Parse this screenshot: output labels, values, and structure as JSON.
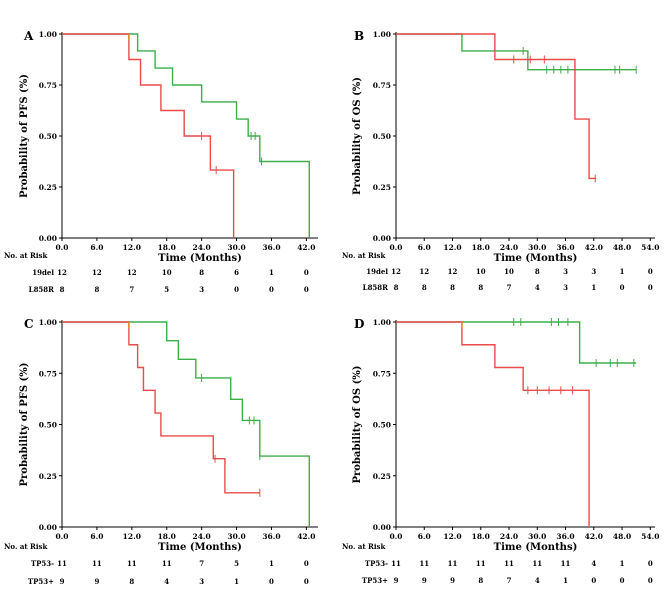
{
  "figure": {
    "colors": {
      "green": "#3cae4a",
      "red": "#ec4a4a",
      "orange": "#e08a1e"
    }
  },
  "chart_data": [
    {
      "panel": "A",
      "type": "line",
      "subtype": "kaplan-meier",
      "ylabel": "Probability of PFS (%)",
      "xlabel": "Time  (Months)",
      "xlim": [
        0,
        44
      ],
      "ylim": [
        0,
        1
      ],
      "xticks": [
        "0.0",
        "6.0",
        "12.0",
        "18.0",
        "24.0",
        "30.0",
        "36.0",
        "42.0"
      ],
      "xtick_values": [
        0,
        6,
        12,
        18,
        24,
        30,
        36,
        42
      ],
      "yticks": [
        "0.00",
        "0.25",
        "0.50",
        "0.75",
        "1.00"
      ],
      "ytick_values": [
        0,
        0.25,
        0.5,
        0.75,
        1
      ],
      "series": [
        {
          "name": "19del",
          "color": "green",
          "steps": [
            [
              0,
              1
            ],
            [
              13,
              0.917
            ],
            [
              16,
              0.833
            ],
            [
              19,
              0.75
            ],
            [
              24,
              0.667
            ],
            [
              30,
              0.583
            ],
            [
              32,
              0.5
            ],
            [
              34,
              0.375
            ],
            [
              42.5,
              0
            ]
          ],
          "censors": [
            [
              32.5,
              0.5
            ],
            [
              33.2,
              0.5
            ],
            [
              34.3,
              0.375
            ]
          ]
        },
        {
          "name": "L858R",
          "color": "red",
          "steps": [
            [
              0,
              1
            ],
            [
              11.5,
              0.875
            ],
            [
              13.5,
              0.75
            ],
            [
              17,
              0.625
            ],
            [
              21,
              0.5
            ],
            [
              25.5,
              0.333
            ],
            [
              29.5,
              0
            ]
          ],
          "censors": [
            [
              24,
              0.5
            ],
            [
              26.5,
              0.333
            ]
          ]
        }
      ],
      "risk_table": {
        "title": "No. at Risk",
        "rows": [
          {
            "label": "19del",
            "values": [
              "12",
              "12",
              "12",
              "10",
              "8",
              "6",
              "1",
              "0"
            ]
          },
          {
            "label": "L858R",
            "values": [
              "8",
              "8",
              "7",
              "5",
              "3",
              "0",
              "0",
              "0"
            ]
          }
        ]
      }
    },
    {
      "panel": "B",
      "type": "line",
      "subtype": "kaplan-meier",
      "ylabel": "Probability of OS (%)",
      "xlabel": "Time  (Months)",
      "xlim": [
        0,
        55
      ],
      "ylim": [
        0,
        1
      ],
      "xticks": [
        "0.0",
        "6.0",
        "12.0",
        "18.0",
        "24.0",
        "30.0",
        "36.0",
        "42.0",
        "48.0",
        "54.0"
      ],
      "xtick_values": [
        0,
        6,
        12,
        18,
        24,
        30,
        36,
        42,
        48,
        54
      ],
      "yticks": [
        "0.00",
        "0.25",
        "0.50",
        "0.75",
        "1.00"
      ],
      "ytick_values": [
        0,
        0.25,
        0.5,
        0.75,
        1
      ],
      "series": [
        {
          "name": "19del",
          "color": "green",
          "steps": [
            [
              0,
              1
            ],
            [
              14,
              0.917
            ],
            [
              28,
              0.825
            ],
            [
              51,
              0.825
            ]
          ],
          "censors": [
            [
              27,
              0.917
            ],
            [
              32,
              0.825
            ],
            [
              33.5,
              0.825
            ],
            [
              35,
              0.825
            ],
            [
              36.5,
              0.825
            ],
            [
              46.5,
              0.825
            ],
            [
              47.5,
              0.825
            ],
            [
              51,
              0.825
            ]
          ]
        },
        {
          "name": "L858R",
          "color": "red",
          "steps": [
            [
              0,
              1
            ],
            [
              21,
              0.875
            ],
            [
              38,
              0.583
            ],
            [
              41,
              0.292
            ],
            [
              42.5,
              0.292
            ]
          ],
          "censors": [
            [
              25,
              0.875
            ],
            [
              28.5,
              0.875
            ],
            [
              31.5,
              0.875
            ],
            [
              42.3,
              0.292
            ]
          ]
        }
      ],
      "risk_table": {
        "title": "No. at Risk",
        "rows": [
          {
            "label": "19del",
            "values": [
              "12",
              "12",
              "12",
              "10",
              "10",
              "8",
              "3",
              "3",
              "1",
              "0"
            ]
          },
          {
            "label": "L858R",
            "values": [
              "8",
              "8",
              "8",
              "8",
              "7",
              "4",
              "3",
              "1",
              "0",
              "0"
            ]
          }
        ]
      }
    },
    {
      "panel": "C",
      "type": "line",
      "subtype": "kaplan-meier",
      "ylabel": "Probability of PFS (%)",
      "xlabel": "Time  (Months)",
      "xlim": [
        0,
        44
      ],
      "ylim": [
        0,
        1
      ],
      "xticks": [
        "0.0",
        "6.0",
        "12.0",
        "18.0",
        "24.0",
        "30.0",
        "36.0",
        "42.0"
      ],
      "xtick_values": [
        0,
        6,
        12,
        18,
        24,
        30,
        36,
        42
      ],
      "yticks": [
        "0.00",
        "0.25",
        "0.50",
        "0.75",
        "1.00"
      ],
      "ytick_values": [
        0,
        0.25,
        0.5,
        0.75,
        1
      ],
      "series": [
        {
          "name": "TP53-",
          "color": "green",
          "steps": [
            [
              0,
              1
            ],
            [
              18,
              0.909
            ],
            [
              20,
              0.818
            ],
            [
              23,
              0.727
            ],
            [
              29,
              0.623
            ],
            [
              31,
              0.52
            ],
            [
              34,
              0.346
            ],
            [
              42.5,
              0
            ]
          ],
          "censors": [
            [
              24,
              0.727
            ],
            [
              32.2,
              0.52
            ],
            [
              33,
              0.52
            ],
            [
              34,
              0.346
            ]
          ]
        },
        {
          "name": "TP53+",
          "color": "red",
          "steps": [
            [
              0,
              1
            ],
            [
              11.5,
              0.889
            ],
            [
              13,
              0.778
            ],
            [
              14,
              0.667
            ],
            [
              16,
              0.556
            ],
            [
              17,
              0.444
            ],
            [
              26,
              0.333
            ],
            [
              28,
              0.167
            ],
            [
              34,
              0.167
            ]
          ],
          "censors": [
            [
              26.3,
              0.333
            ],
            [
              34,
              0.167
            ]
          ]
        }
      ],
      "risk_table": {
        "title": "No. at Risk",
        "rows": [
          {
            "label": "TP53-",
            "values": [
              "11",
              "11",
              "11",
              "11",
              "7",
              "5",
              "1",
              "0"
            ]
          },
          {
            "label": "TP53+",
            "values": [
              "9",
              "9",
              "8",
              "4",
              "3",
              "1",
              "0",
              "0"
            ]
          }
        ]
      }
    },
    {
      "panel": "D",
      "type": "line",
      "subtype": "kaplan-meier",
      "ylabel": "Probability of OS (%)",
      "xlabel": "Time  (Months)",
      "xlim": [
        0,
        55
      ],
      "ylim": [
        0,
        1
      ],
      "xticks": [
        "0.0",
        "6.0",
        "12.0",
        "18.0",
        "24.0",
        "30.0",
        "36.0",
        "42.0",
        "48.0",
        "54.0"
      ],
      "xtick_values": [
        0,
        6,
        12,
        18,
        24,
        30,
        36,
        42,
        48,
        54
      ],
      "yticks": [
        "0.00",
        "0.25",
        "0.50",
        "0.75",
        "1.00"
      ],
      "ytick_values": [
        0,
        0.25,
        0.5,
        0.75,
        1
      ],
      "series": [
        {
          "name": "TP53-",
          "color": "green",
          "steps": [
            [
              0,
              1
            ],
            [
              39,
              0.8
            ],
            [
              51,
              0.8
            ]
          ],
          "censors": [
            [
              25,
              1
            ],
            [
              26.5,
              1
            ],
            [
              33,
              1
            ],
            [
              34.5,
              1
            ],
            [
              36.5,
              1
            ],
            [
              42.5,
              0.8
            ],
            [
              45.5,
              0.8
            ],
            [
              47,
              0.8
            ],
            [
              50.5,
              0.8
            ]
          ]
        },
        {
          "name": "TP53+",
          "color": "red",
          "steps": [
            [
              0,
              1
            ],
            [
              14,
              0.889
            ],
            [
              21,
              0.778
            ],
            [
              27,
              0.667
            ],
            [
              41,
              0
            ]
          ],
          "censors": [
            [
              28,
              0.667
            ],
            [
              30,
              0.667
            ],
            [
              32.5,
              0.667
            ],
            [
              35,
              0.667
            ],
            [
              37.5,
              0.667
            ]
          ]
        }
      ],
      "risk_table": {
        "title": "No. at Risk",
        "rows": [
          {
            "label": "TP53-",
            "values": [
              "11",
              "11",
              "11",
              "11",
              "11",
              "11",
              "11",
              "4",
              "1",
              "0"
            ]
          },
          {
            "label": "TP53+",
            "values": [
              "9",
              "9",
              "9",
              "8",
              "7",
              "4",
              "1",
              "0",
              "0",
              "0"
            ]
          }
        ]
      }
    }
  ]
}
